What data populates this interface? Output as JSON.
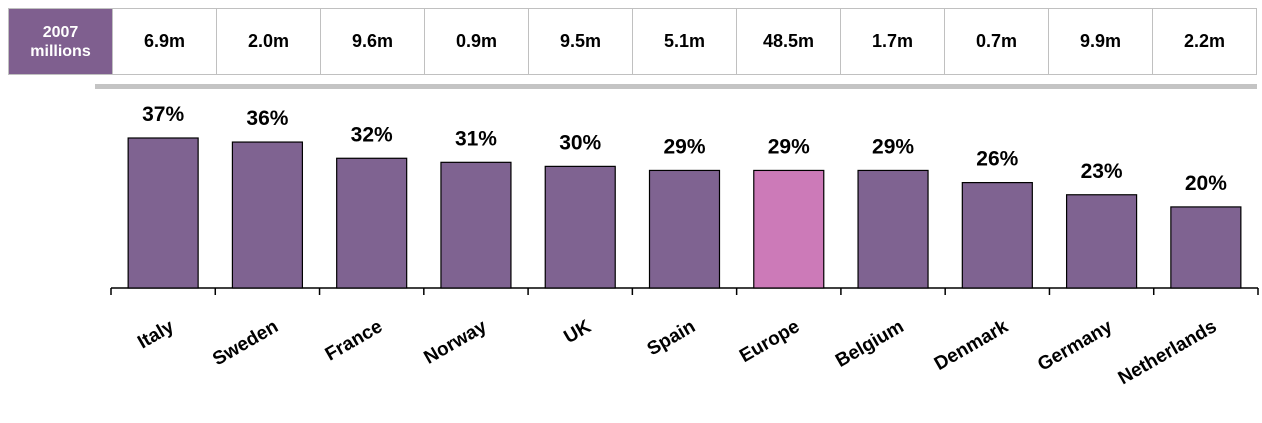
{
  "header": {
    "label_line1": "2007",
    "label_line2": "millions",
    "label_color": "#7f5f8f",
    "values": [
      "6.9m",
      "2.0m",
      "9.6m",
      "0.9m",
      "9.5m",
      "5.1m",
      "48.5m",
      "1.7m",
      "0.7m",
      "9.9m",
      "2.2m"
    ]
  },
  "chart_data": {
    "type": "bar",
    "categories": [
      "Italy",
      "Sweden",
      "France",
      "Norway",
      "UK",
      "Spain",
      "Europe",
      "Belgium",
      "Denmark",
      "Germany",
      "Netherlands"
    ],
    "values": [
      37,
      36,
      32,
      31,
      30,
      29,
      29,
      29,
      26,
      23,
      20
    ],
    "data_labels": [
      "37%",
      "36%",
      "32%",
      "31%",
      "30%",
      "29%",
      "29%",
      "29%",
      "26%",
      "23%",
      "20%"
    ],
    "unit": "%",
    "ylim": [
      0,
      42
    ],
    "colors": {
      "default": "#7f6391",
      "highlight": "#cc7ab8",
      "highlight_category": "Europe"
    },
    "grid": false,
    "legend": "none"
  }
}
